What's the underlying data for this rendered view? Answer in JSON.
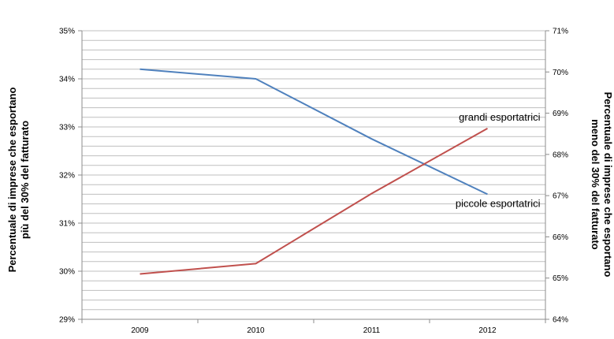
{
  "chart_data": {
    "type": "line",
    "categories": [
      "2009",
      "2010",
      "2011",
      "2012"
    ],
    "y_left_label": [
      "Percentuale di imprese che esportano",
      "più del 30% del fatturato"
    ],
    "y_right_label": [
      "Percentuale di imprese che esportano",
      "meno del 30%  del fatturato"
    ],
    "y_left_range": [
      0.29,
      0.35
    ],
    "y_right_range": [
      0.64,
      0.71
    ],
    "y_left_ticks": [
      "29%",
      "30%",
      "31%",
      "32%",
      "33%",
      "34%",
      "35%"
    ],
    "y_right_ticks": [
      "64%",
      "65%",
      "66%",
      "67%",
      "68%",
      "69%",
      "70%",
      "71%"
    ],
    "grid": "horizontal",
    "series": [
      {
        "name": "piccole esportatrici",
        "axis": "left",
        "color": "#4f81bd",
        "values": [
          0.342,
          0.34,
          0.3275,
          0.316
        ]
      },
      {
        "name": "grandi esportatrici",
        "axis": "right",
        "color": "#c0504d",
        "values": [
          0.651,
          0.6535,
          0.6705,
          0.6863
        ]
      }
    ]
  }
}
